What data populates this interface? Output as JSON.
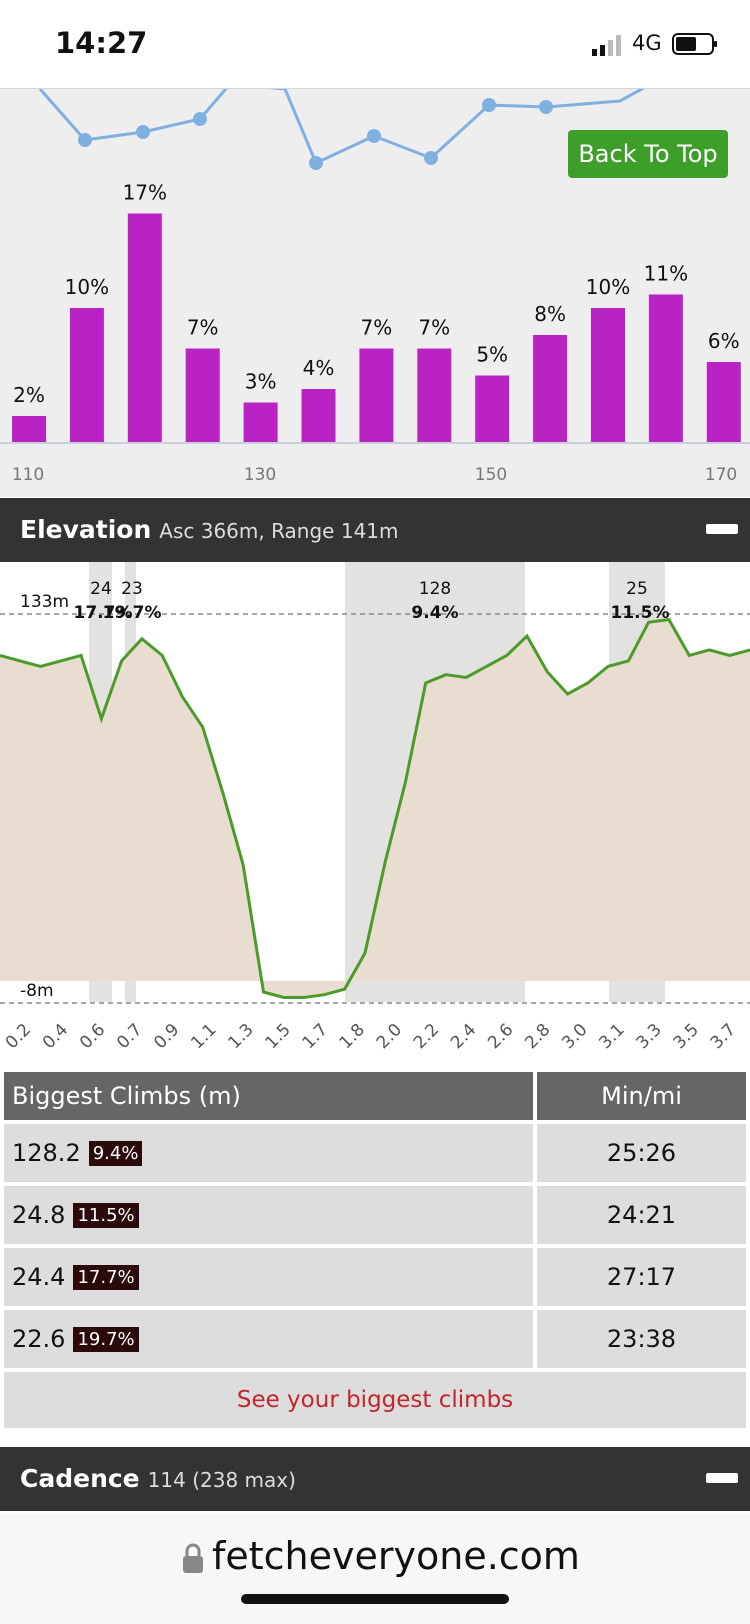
{
  "status": {
    "time": "14:27",
    "network": "4G"
  },
  "back_to_top": "Back To Top",
  "bar_chart": {
    "type": "bar",
    "bars": [
      {
        "label": "2%",
        "value": 2
      },
      {
        "label": "10%",
        "value": 10
      },
      {
        "label": "17%",
        "value": 17
      },
      {
        "label": "7%",
        "value": 7
      },
      {
        "label": "3%",
        "value": 3
      },
      {
        "label": "4%",
        "value": 4
      },
      {
        "label": "7%",
        "value": 7
      },
      {
        "label": "7%",
        "value": 7
      },
      {
        "label": "5%",
        "value": 5
      },
      {
        "label": "8%",
        "value": 8
      },
      {
        "label": "10%",
        "value": 10
      },
      {
        "label": "11%",
        "value": 11
      },
      {
        "label": "6%",
        "value": 6
      }
    ],
    "x_ticks": [
      "110",
      "130",
      "150",
      "170"
    ],
    "bar_color": "#b923c4",
    "line_color": "#7fb0e0"
  },
  "elevation": {
    "title": "Elevation",
    "subtitle": "Asc 366m, Range 141m",
    "max_label": "133m",
    "min_label": "-8m",
    "climb_labels": [
      {
        "top": "24",
        "bottom": "17.7%"
      },
      {
        "top": "23",
        "bottom": "19.7%"
      },
      {
        "top": "128",
        "bottom": "9.4%"
      },
      {
        "top": "25",
        "bottom": "11.5%"
      }
    ],
    "x_ticks": [
      "0.2",
      "0.4",
      "0.6",
      "0.7",
      "0.9",
      "1.1",
      "1.3",
      "1.5",
      "1.7",
      "1.8",
      "2.0",
      "2.2",
      "2.4",
      "2.6",
      "2.8",
      "3.0",
      "3.1",
      "3.3",
      "3.5",
      "3.7"
    ],
    "line_color": "#4c9a2a",
    "fill_color": "#e8ddd0"
  },
  "chart_data": [
    {
      "type": "bar",
      "categories": [
        "110",
        "115",
        "120",
        "125",
        "130",
        "135",
        "140",
        "145",
        "150",
        "155",
        "160",
        "165",
        "170"
      ],
      "values": [
        2,
        10,
        17,
        7,
        3,
        4,
        7,
        7,
        5,
        8,
        10,
        11,
        6
      ],
      "value_labels": [
        "2%",
        "10%",
        "17%",
        "7%",
        "3%",
        "4%",
        "7%",
        "7%",
        "5%",
        "8%",
        "10%",
        "11%",
        "6%"
      ],
      "x_tick_labels": [
        "110",
        "130",
        "150",
        "170"
      ]
    },
    {
      "type": "area",
      "title": "Elevation",
      "x_tick_labels": [
        "0.2",
        "0.4",
        "0.6",
        "0.7",
        "0.9",
        "1.1",
        "1.3",
        "1.5",
        "1.7",
        "1.8",
        "2.0",
        "2.2",
        "2.4",
        "2.6",
        "2.8",
        "3.0",
        "3.1",
        "3.3",
        "3.5",
        "3.7"
      ],
      "ylim": [
        -8,
        133
      ],
      "x": [
        0.0,
        0.2,
        0.4,
        0.5,
        0.6,
        0.7,
        0.8,
        0.9,
        1.0,
        1.1,
        1.2,
        1.3,
        1.4,
        1.5,
        1.6,
        1.7,
        1.8,
        1.9,
        2.0,
        2.1,
        2.2,
        2.3,
        2.4,
        2.5,
        2.6,
        2.7,
        2.8,
        2.9,
        3.0,
        3.1,
        3.2,
        3.3,
        3.4,
        3.5,
        3.6,
        3.7
      ],
      "y": [
        118,
        114,
        118,
        95,
        116,
        124,
        118,
        103,
        92,
        68,
        42,
        -4,
        -6,
        -6,
        -5,
        -3,
        10,
        43,
        72,
        108,
        111,
        110,
        114,
        118,
        125,
        112,
        104,
        108,
        114,
        116,
        130,
        131,
        118,
        120,
        118,
        120
      ]
    }
  ],
  "cadence": {
    "title": "Cadence",
    "subtitle": "114 (238 max)"
  },
  "climbs_table": {
    "headers": [
      "Biggest Climbs (m)",
      "Min/mi"
    ],
    "rows": [
      {
        "value": "128.2",
        "pct": "9.4%",
        "pace": "25:26"
      },
      {
        "value": "24.8",
        "pct": "11.5%",
        "pace": "24:21"
      },
      {
        "value": "24.4",
        "pct": "17.7%",
        "pace": "27:17"
      },
      {
        "value": "22.6",
        "pct": "19.7%",
        "pace": "23:38"
      }
    ],
    "link": "See your biggest climbs"
  },
  "browser": {
    "url": "fetcheveryone.com"
  }
}
